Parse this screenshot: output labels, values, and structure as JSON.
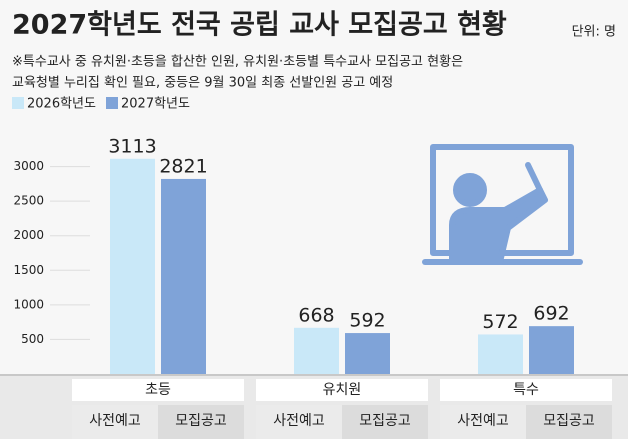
{
  "chart_data": {
    "type": "bar",
    "title": "2027학년도 전국 공립 교사 모집공고 현황",
    "unit": "단위: 명",
    "note": [
      "※특수교사 중 유치원·초등을 합산한 인원, 유치원·초등별 특수교사 모집공고 현황은",
      "교육청별 누리집 확인 필요, 중등은 9월 30일 최종 선발인원 공고 예정"
    ],
    "categories": [
      "초등",
      "유치원",
      "특수"
    ],
    "sub_labels": [
      "사전예고",
      "모집공고"
    ],
    "series": [
      {
        "name": "2026학년도",
        "color": "#c9e8f8",
        "values": [
          3113,
          668,
          572
        ]
      },
      {
        "name": "2027학년도",
        "color": "#7fa3d8",
        "values": [
          2821,
          592,
          692
        ]
      }
    ],
    "ylim": [
      0,
      3500
    ],
    "yticks": [
      500,
      1000,
      1500,
      2000,
      2500,
      3000
    ],
    "grid": true
  }
}
